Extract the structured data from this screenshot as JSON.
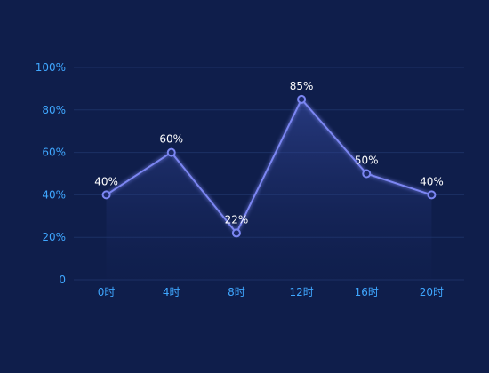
{
  "chart_data": {
    "type": "line",
    "categories": [
      "0时",
      "4时",
      "8时",
      "12时",
      "16时",
      "20时"
    ],
    "series": [
      {
        "values": [
          40,
          60,
          22,
          85,
          50,
          40
        ],
        "data_labels": [
          "40%",
          "60%",
          "22%",
          "85%",
          "50%",
          "40%"
        ]
      }
    ],
    "ylim": [
      0,
      100
    ],
    "y_ticks": [
      0,
      20,
      40,
      60,
      80,
      100
    ],
    "y_tick_labels": [
      "0",
      "20%",
      "40%",
      "60%",
      "80%",
      "100%"
    ],
    "grid": true,
    "area_fill": true,
    "colors": {
      "background": "#0f1e4b",
      "line": "#7b86f2",
      "point_fill": "#1c2a66",
      "grid": "#1c3064",
      "axis_label": "#3fa7ff",
      "data_label": "#ffffff"
    }
  }
}
